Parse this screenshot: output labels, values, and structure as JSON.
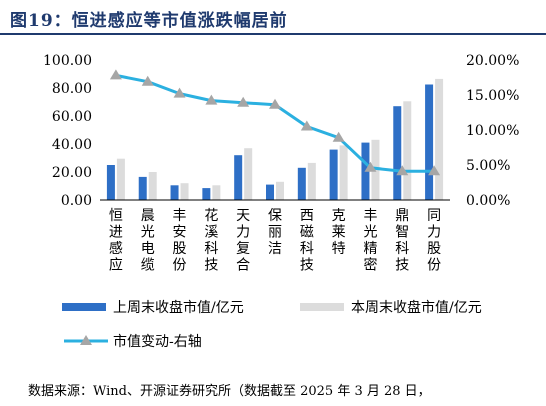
{
  "title": "图19：恒进感应等市值涨跌幅居前",
  "source": "数据来源：Wind、开源证券研究所（数据截至 2025 年 3 月 28 日，",
  "chart_data": {
    "type": "bar",
    "categories": [
      "恒进感应",
      "晨光电缆",
      "丰安股份",
      "花溪科技",
      "天力复合",
      "保丽洁",
      "西磁科技",
      "克莱特",
      "丰光精密",
      "鼎智科技",
      "同力股份"
    ],
    "series": [
      {
        "name": "上周末收盘市值/亿元",
        "type": "bar",
        "axis": "left",
        "color": "#2e6fc6",
        "values": [
          25.0,
          16.5,
          10.5,
          8.5,
          32.0,
          11.0,
          23.0,
          36.0,
          41.0,
          67.0,
          82.5
        ]
      },
      {
        "name": "本周末收盘市值/亿元",
        "type": "bar",
        "axis": "left",
        "color": "#dcdcdc",
        "values": [
          29.5,
          20.0,
          12.0,
          10.5,
          37.0,
          13.0,
          26.5,
          39.0,
          43.0,
          70.5,
          86.5
        ]
      },
      {
        "name": "市值变动-右轴",
        "type": "line",
        "axis": "right",
        "color": "#2bb0e0",
        "values": [
          17.8,
          16.9,
          15.2,
          14.2,
          13.9,
          13.6,
          10.5,
          8.9,
          4.6,
          4.1,
          4.1
        ]
      }
    ],
    "y_left": {
      "min": 0,
      "max": 100,
      "step": 20,
      "tick_labels": [
        "0.00",
        "20.00",
        "40.00",
        "60.00",
        "80.00",
        "100.00"
      ]
    },
    "y_right": {
      "min": 0,
      "max": 20,
      "step": 5,
      "tick_labels": [
        "0.00%",
        "5.00%",
        "10.00%",
        "15.00%",
        "20.00%"
      ]
    },
    "grid": false,
    "legend_position": "bottom"
  }
}
